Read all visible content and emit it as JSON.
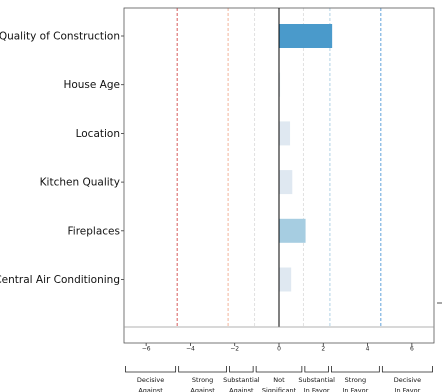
{
  "chart_data": {
    "type": "bar",
    "orientation": "horizontal",
    "categories": [
      "Quality of Construction",
      "House Age",
      "Location",
      "Kitchen Quality",
      "Fireplaces",
      "Central Air Conditioning"
    ],
    "values": [
      2.4,
      0.05,
      0.5,
      0.6,
      1.2,
      0.55
    ],
    "bar_colors": [
      "#4a9acb",
      "#e8eef4",
      "#dfe8f1",
      "#dfe8f1",
      "#a6cde1",
      "#dfe8f1"
    ],
    "xlim": [
      -7,
      7
    ],
    "x_ticks": [
      -6,
      -4,
      -2,
      0,
      2,
      4,
      6
    ],
    "x_tick_labels": [
      "−6",
      "−4",
      "−2",
      "0",
      "2",
      "4",
      "6"
    ],
    "reference_lines": [
      {
        "x": -4.6,
        "color": "#cc3333",
        "style": "dashed"
      },
      {
        "x": -2.3,
        "color": "#f0a080",
        "style": "dashed"
      },
      {
        "x": -1.1,
        "color": "#d8d8d8",
        "style": "dashed"
      },
      {
        "x": 1.1,
        "color": "#d8d8d8",
        "style": "dashed"
      },
      {
        "x": 2.3,
        "color": "#9cc6e0",
        "style": "dashed"
      },
      {
        "x": 4.6,
        "color": "#3a8bd0",
        "style": "dashed"
      }
    ],
    "evidence_bands": [
      {
        "lines": [
          "Decisive",
          "Against"
        ],
        "from": -7,
        "to": -4.6
      },
      {
        "lines": [
          "Strong",
          "Against"
        ],
        "from": -4.6,
        "to": -2.3
      },
      {
        "lines": [
          "Substantial",
          "Against"
        ],
        "from": -2.3,
        "to": -1.1
      },
      {
        "lines": [
          "Not",
          "Significant"
        ],
        "from": -1.1,
        "to": 1.1
      },
      {
        "lines": [
          "Substantial",
          "In Favor"
        ],
        "from": 1.1,
        "to": 2.3
      },
      {
        "lines": [
          "Strong",
          "In Favor"
        ],
        "from": 2.3,
        "to": 4.6
      },
      {
        "lines": [
          "Decisive",
          "In Favor"
        ],
        "from": 4.6,
        "to": 7
      }
    ],
    "title": "",
    "xlabel": "",
    "ylabel": ""
  }
}
